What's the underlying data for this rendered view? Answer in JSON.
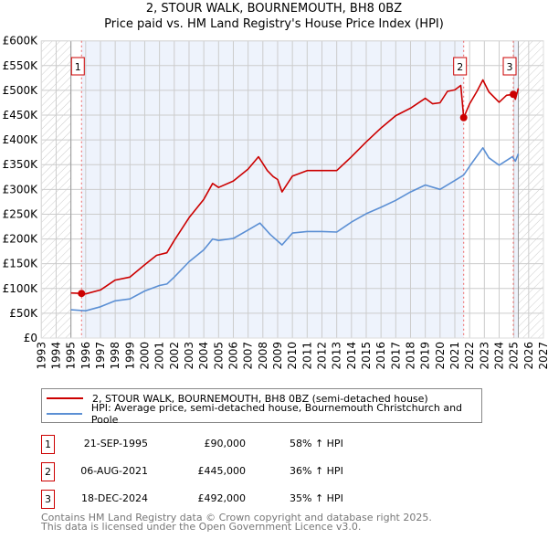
{
  "title": "2, STOUR WALK, BOURNEMOUTH, BH8 0BZ",
  "subtitle": "Price paid vs. HM Land Registry's House Price Index (HPI)",
  "chart_data": {
    "type": "line",
    "title": "2, STOUR WALK, BOURNEMOUTH, BH8 0BZ — Price paid vs. HM Land Registry's House Price Index (HPI)",
    "xlim": [
      1993,
      2027
    ],
    "ylim": [
      0,
      600000
    ],
    "x_ticks": [
      "1993",
      "1994",
      "1995",
      "1996",
      "1997",
      "1998",
      "1999",
      "2000",
      "2001",
      "2002",
      "2003",
      "2004",
      "2005",
      "2006",
      "2007",
      "2008",
      "2009",
      "2010",
      "2011",
      "2012",
      "2013",
      "2014",
      "2015",
      "2016",
      "2017",
      "2018",
      "2019",
      "2020",
      "2021",
      "2022",
      "2023",
      "2024",
      "2025",
      "2026",
      "2027"
    ],
    "y_ticks": [
      {
        "v": 0,
        "label": "£0"
      },
      {
        "v": 50000,
        "label": "£50K"
      },
      {
        "v": 100000,
        "label": "£100K"
      },
      {
        "v": 150000,
        "label": "£150K"
      },
      {
        "v": 200000,
        "label": "£200K"
      },
      {
        "v": 250000,
        "label": "£250K"
      },
      {
        "v": 300000,
        "label": "£300K"
      },
      {
        "v": 350000,
        "label": "£350K"
      },
      {
        "v": 400000,
        "label": "£400K"
      },
      {
        "v": 450000,
        "label": "£450K"
      },
      {
        "v": 500000,
        "label": "£500K"
      },
      {
        "v": 550000,
        "label": "£550K"
      },
      {
        "v": 600000,
        "label": "£600K"
      }
    ],
    "grid": true,
    "series": [
      {
        "name": "2, STOUR WALK, BOURNEMOUTH, BH8 0BZ (semi-detached house)",
        "color": "#cc0000",
        "x": [
          1995,
          1995.72,
          1996,
          1997,
          1998,
          1999,
          2000,
          2000.8,
          2001.5,
          2002,
          2003,
          2004,
          2004.6,
          2005,
          2006,
          2007,
          2007.7,
          2008.3,
          2008.7,
          2009,
          2009.3,
          2010,
          2011,
          2012,
          2013,
          2014,
          2015,
          2016,
          2017,
          2018,
          2019,
          2019.5,
          2020,
          2020.5,
          2021,
          2021.4,
          2021.6,
          2022,
          2022.5,
          2022.9,
          2023.3,
          2024,
          2024.5,
          2024.96,
          2025.1,
          2025.3
        ],
        "y": [
          91000,
          90000,
          89000,
          97000,
          117000,
          123000,
          148000,
          167000,
          172000,
          197000,
          243000,
          280000,
          312000,
          304000,
          317000,
          341000,
          366000,
          338000,
          326000,
          320000,
          295000,
          327000,
          338000,
          338000,
          338000,
          366000,
          396000,
          424000,
          449000,
          464000,
          484000,
          473000,
          475000,
          498000,
          501000,
          510000,
          445000,
          473000,
          498000,
          521000,
          497000,
          476000,
          490000,
          492000,
          482000,
          504000
        ]
      },
      {
        "name": "HPI: Average price, semi-detached house, Bournemouth Christchurch and Poole",
        "color": "#5b8fd4",
        "x": [
          1995,
          1996,
          1997,
          1998,
          1999,
          2000,
          2001,
          2001.5,
          2002,
          2003,
          2004,
          2004.6,
          2005,
          2006,
          2007,
          2007.8,
          2008.5,
          2009.3,
          2010,
          2011,
          2012,
          2013,
          2014,
          2015,
          2016,
          2017,
          2018,
          2019,
          2020,
          2021,
          2021.6,
          2022,
          2022.9,
          2023.3,
          2024,
          2024.9,
          2025.1,
          2025.3
        ],
        "y": [
          57000,
          55000,
          63000,
          75000,
          79000,
          95000,
          106000,
          109000,
          123000,
          154000,
          178000,
          200000,
          197000,
          201000,
          218000,
          232000,
          209000,
          188000,
          212000,
          215000,
          215000,
          214000,
          234000,
          251000,
          264000,
          278000,
          295000,
          309000,
          300000,
          318000,
          329000,
          347000,
          384000,
          364000,
          349000,
          366000,
          357000,
          372000
        ]
      }
    ],
    "sales": [
      {
        "id": "1",
        "x": 1995.72,
        "y": 90000,
        "date": "21-SEP-1995",
        "price": "£90,000",
        "hpi": "58% ↑ HPI"
      },
      {
        "id": "2",
        "x": 2021.6,
        "y": 445000,
        "date": "06-AUG-2021",
        "price": "£445,000",
        "hpi": "36% ↑ HPI"
      },
      {
        "id": "3",
        "x": 2024.96,
        "y": 492000,
        "date": "18-DEC-2024",
        "price": "£492,000",
        "hpi": "35% ↑ HPI"
      }
    ],
    "data_end": 2025.3
  },
  "legend": {
    "property": "2, STOUR WALK, BOURNEMOUTH, BH8 0BZ (semi-detached house)",
    "hpi": "HPI: Average price, semi-detached house, Bournemouth Christchurch and Poole"
  },
  "footer": {
    "line1": "Contains HM Land Registry data © Crown copyright and database right 2025.",
    "line2": "This data is licensed under the Open Government Licence v3.0."
  }
}
